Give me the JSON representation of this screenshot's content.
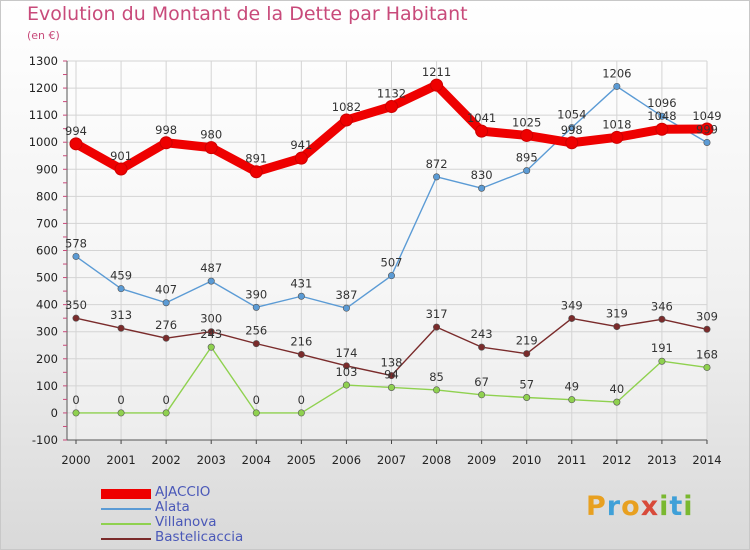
{
  "title": "Evolution du Montant de la Dette par Habitant",
  "subtitle": "(en €)",
  "logo": {
    "text": "Proxiti",
    "letters": [
      "P",
      "r",
      "o",
      "x",
      "i",
      "t",
      "i"
    ],
    "colors": [
      "#e8a020",
      "#3fa0d8",
      "#e8a020",
      "#d84a3a",
      "#7ab830",
      "#3fa0d8",
      "#7ab830"
    ]
  },
  "chart_data": {
    "type": "line",
    "x": [
      "2000",
      "2001",
      "2002",
      "2003",
      "2004",
      "2005",
      "2006",
      "2007",
      "2008",
      "2009",
      "2010",
      "2011",
      "2012",
      "2013",
      "2014"
    ],
    "ylim": [
      -100,
      1300
    ],
    "yticks": [
      "-100",
      "0",
      "100",
      "200",
      "300",
      "400",
      "500",
      "600",
      "700",
      "800",
      "900",
      "1000",
      "1100",
      "1200",
      "1300"
    ],
    "grid": true,
    "legend_position": "bottom-left",
    "series": [
      {
        "name": "AJACCIO",
        "color": "#ee0000",
        "values": [
          994,
          901,
          998,
          980,
          891,
          941,
          1082,
          1132,
          1211,
          1041,
          1025,
          998,
          1018,
          1048,
          1049
        ],
        "labels": [
          "994",
          "901",
          "998",
          "980",
          "891",
          "941",
          "1082",
          "1132",
          "1211",
          "1041",
          "1025",
          "998",
          "1018",
          "1048",
          "1049"
        ]
      },
      {
        "name": "Alata",
        "color": "#5b9bd5",
        "values": [
          578,
          459,
          407,
          487,
          390,
          431,
          387,
          507,
          872,
          830,
          895,
          1054,
          1206,
          1096,
          999
        ],
        "labels": [
          "578",
          "459",
          "407",
          "487",
          "390",
          "431",
          "387",
          "507",
          "872",
          "830",
          "895",
          "1054",
          "1206",
          "1096",
          "999"
        ]
      },
      {
        "name": "Villanova",
        "color": "#8fd14f",
        "values": [
          0,
          0,
          0,
          243,
          0,
          0,
          103,
          94,
          85,
          67,
          57,
          49,
          40,
          191,
          168
        ],
        "labels": [
          "0",
          "0",
          "0",
          "243",
          "0",
          "0",
          "103",
          "94",
          "85",
          "67",
          "57",
          "49",
          "40",
          "191",
          "168"
        ]
      },
      {
        "name": "Bastelicaccia",
        "color": "#7a2b2b",
        "values": [
          350,
          313,
          276,
          300,
          256,
          216,
          174,
          138,
          317,
          243,
          219,
          349,
          319,
          346,
          309
        ],
        "labels": [
          "350",
          "313",
          "276",
          "300",
          "256",
          "216",
          "174",
          "138",
          "317",
          "243",
          "219",
          "349",
          "319",
          "346",
          "309"
        ]
      }
    ]
  }
}
